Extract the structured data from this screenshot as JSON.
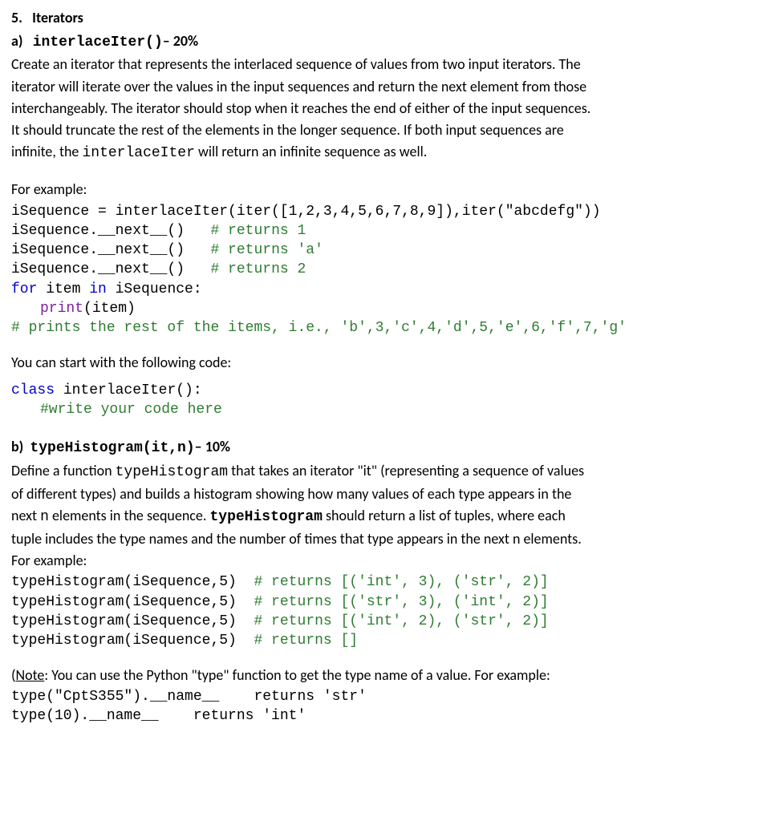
{
  "section": {
    "number": "5.",
    "title": "Iterators"
  },
  "partA": {
    "label": "a)",
    "funcName": "interlaceIter()",
    "weight": "– 20%",
    "description_l1": "Create an iterator that represents the interlaced sequence of values from two input iterators. The",
    "description_l2": "iterator will iterate over the values in the input sequences and return the next element from those",
    "description_l3": "interchangeably.  The iterator should stop when it reaches the end of either of the input sequences.",
    "description_l4": "It should truncate the rest of the elements in the longer sequence. If both input sequences are",
    "description_l5_prefix": "infinite, the ",
    "description_l5_code": "interlaceIter",
    "description_l5_suffix": " will return an infinite sequence as well.",
    "forExample": "For example:",
    "code": {
      "l1": "iSequence = interlaceIter(iter([1,2,3,4,5,6,7,8,9]),iter(\"abcdefg\"))",
      "l2a": "iSequence.__next__()   ",
      "l2b": "# returns 1",
      "l3a": "iSequence.__next__()   ",
      "l3b": "# returns 'a'",
      "l4a": "iSequence.__next__()   ",
      "l4b": "# returns 2",
      "l5_for": "for",
      "l5_mid": " item ",
      "l5_in": "in",
      "l5_end": " iSequence:",
      "l6_print": "print",
      "l6_rest": "(item)",
      "l7": "# prints the rest of the items, i.e., 'b',3,'c',4,'d',5,'e',6,'f',7,'g'"
    },
    "startWith": "You can start with the following code:",
    "starter": {
      "l1_class": "class",
      "l1_rest": " interlaceIter():",
      "l2": "#write your code here"
    }
  },
  "partB": {
    "label": "b)",
    "funcName": "typeHistogram(it,n)",
    "weight": "– 10%",
    "desc_l1_pre": "Define a function ",
    "desc_l1_code": "typeHistogram",
    "desc_l1_post": "  that takes an iterator \"it\" (representing a sequence of values",
    "desc_l2": "of different types) and builds a histogram showing how many values of each type appears in the",
    "desc_l3_pre": "next ",
    "desc_l3_code1": "n",
    "desc_l3_mid": "  elements in the sequence. ",
    "desc_l3_code2": "typeHistogram",
    "desc_l3_post": " should return a list of tuples, where each",
    "desc_l4": "tuple includes the type names and the number of times that type appears in the next n elements.",
    "forExample": "For example:",
    "code": {
      "l1a": "typeHistogram(iSequence,5)  ",
      "l1b": "# returns [('int', 3), ('str', 2)]",
      "l2a": "typeHistogram(iSequence,5)  ",
      "l2b": "# returns [('str', 3), ('int', 2)]",
      "l3a": "typeHistogram(iSequence,5)  ",
      "l3b": "# returns [('int', 2), ('str', 2)]",
      "l4a": "typeHistogram(iSequence,5)  ",
      "l4b": "# returns []"
    },
    "note_label": "Note",
    "note_rest": ": You can use the Python \"type\" function to get the type name of a value. For example:",
    "note_l2a": "type(\"CptS355\").__name__    ",
    "note_l2b": "returns 'str'",
    "note_l3a": "type(10).__name__    ",
    "note_l3b": "returns 'int'"
  }
}
